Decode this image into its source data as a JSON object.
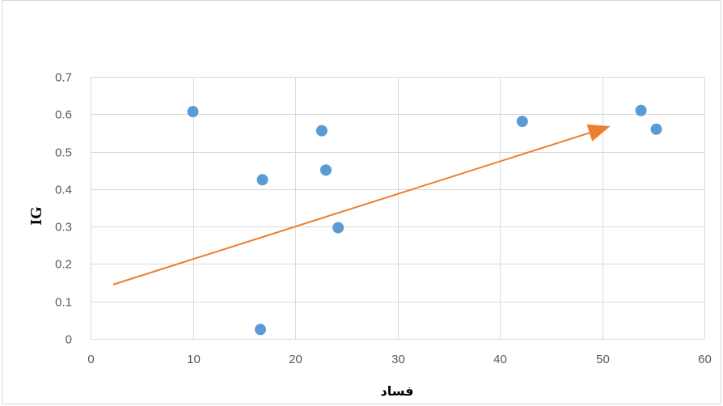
{
  "chart_data": {
    "type": "scatter",
    "title": "",
    "xlabel": "فساد",
    "ylabel": "IG",
    "xlim": [
      0,
      60
    ],
    "ylim": [
      0,
      0.7
    ],
    "x_ticks": [
      0,
      10,
      20,
      30,
      40,
      50,
      60
    ],
    "y_ticks": [
      0,
      0.1,
      0.2,
      0.3,
      0.4,
      0.5,
      0.6,
      0.7
    ],
    "x_tick_labels": [
      "0",
      "10",
      "20",
      "30",
      "40",
      "50",
      "60"
    ],
    "y_tick_labels": [
      "0",
      "0.1",
      "0.2",
      "0.3",
      "0.4",
      "0.5",
      "0.6",
      "0.7"
    ],
    "grid": true,
    "series": [
      {
        "x": [
          10.0,
          16.6,
          16.8,
          22.6,
          23.0,
          24.2,
          42.2,
          53.8,
          55.3
        ],
        "y": [
          0.607,
          0.025,
          0.425,
          0.556,
          0.451,
          0.297,
          0.581,
          0.61,
          0.56
        ],
        "color": "#5b9bd5"
      }
    ],
    "annotations": [
      {
        "type": "arrow",
        "from": {
          "x": 2.2,
          "y": 0.145
        },
        "to": {
          "x": 50.8,
          "y": 0.568
        },
        "color": "#ed7d31"
      }
    ]
  }
}
